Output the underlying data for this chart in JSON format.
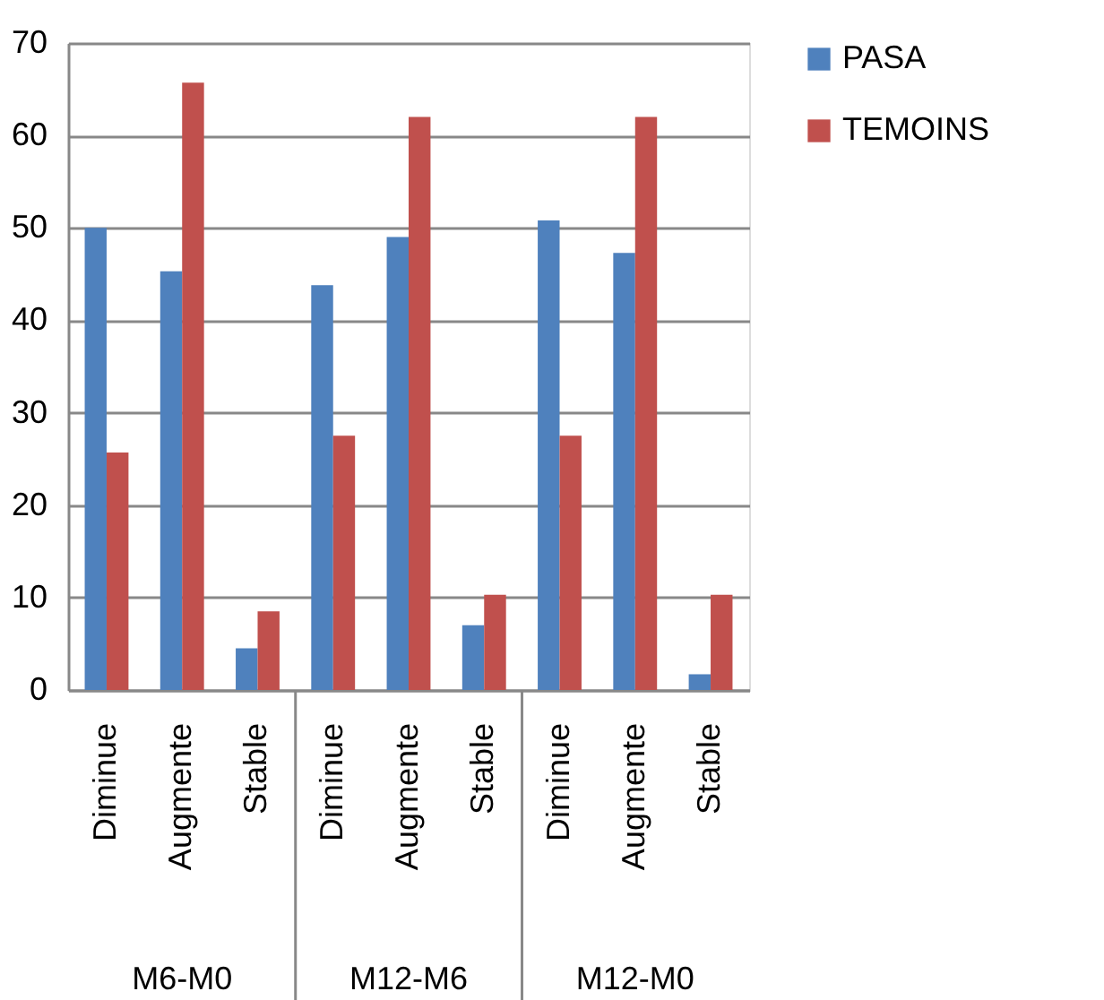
{
  "chart_data": {
    "type": "bar",
    "categories": [
      "Diminue",
      "Augmente",
      "Stable",
      "Diminue",
      "Augmente",
      "Stable",
      "Diminue",
      "Augmente",
      "Stable"
    ],
    "series": [
      {
        "name": "PASA",
        "color": "#4f81bd",
        "values": [
          50,
          45.3,
          4.5,
          43.8,
          49,
          7,
          50.8,
          47.3,
          1.7
        ]
      },
      {
        "name": "TEMOINS",
        "color": "#c0504d",
        "values": [
          25.7,
          65.7,
          8.5,
          27.5,
          62,
          10.3,
          27.5,
          62,
          10.3
        ]
      }
    ],
    "annotations": [
      "M6-M0",
      "M12-M6",
      "M12-M0"
    ],
    "ylim": [
      0,
      70
    ],
    "yticks": [
      0,
      10,
      20,
      30,
      40,
      50,
      60,
      70
    ],
    "grid": "y",
    "legend": "right"
  }
}
